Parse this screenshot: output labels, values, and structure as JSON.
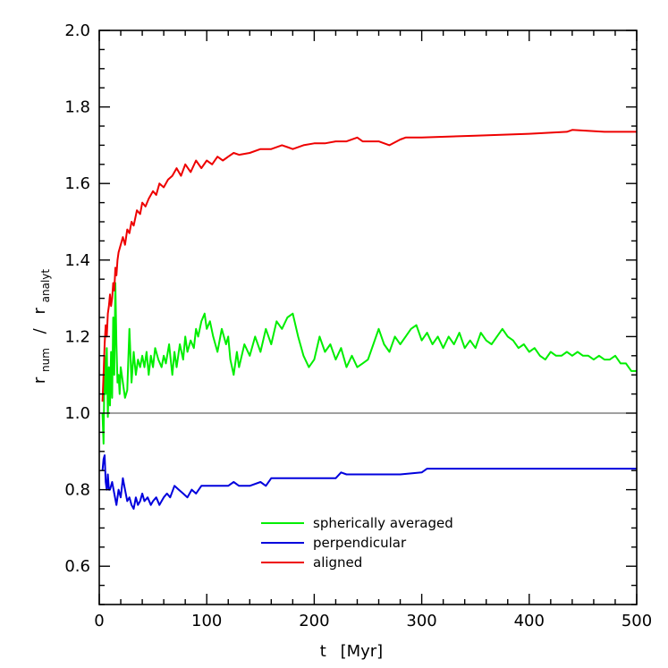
{
  "chart_data": {
    "type": "line",
    "xlabel": {
      "main": "t",
      "unit": "[Myr]"
    },
    "ylabel": {
      "num_main": "r",
      "num_sub": "num",
      "slash": "/",
      "den_main": "r",
      "den_sub": "analyt"
    },
    "xlim": [
      0,
      500
    ],
    "ylim": [
      0.5,
      2.0
    ],
    "xticks": [
      0,
      100,
      200,
      300,
      400,
      500
    ],
    "xtick_labels": [
      "0",
      "100",
      "200",
      "300",
      "400",
      "500"
    ],
    "yticks": [
      0.6,
      0.8,
      1.0,
      1.2,
      1.4,
      1.6,
      1.8,
      2.0
    ],
    "ytick_labels": [
      "0.6",
      "0.8",
      "1.0",
      "1.2",
      "1.4",
      "1.6",
      "1.8",
      "2.0"
    ],
    "reference_line": {
      "y": 1.0,
      "color": "#000000"
    },
    "legend": {
      "placement": "bottom-center"
    },
    "series": [
      {
        "name": "spherically averaged",
        "color": "#00ee00",
        "x": [
          3,
          4,
          5,
          6,
          7,
          8,
          9,
          10,
          11,
          12,
          13,
          14,
          15,
          16,
          17,
          18,
          19,
          20,
          22,
          24,
          26,
          28,
          30,
          32,
          34,
          36,
          38,
          40,
          42,
          44,
          46,
          48,
          50,
          52,
          55,
          58,
          60,
          62,
          65,
          68,
          70,
          72,
          75,
          78,
          80,
          82,
          85,
          88,
          90,
          92,
          95,
          98,
          100,
          103,
          106,
          110,
          114,
          118,
          120,
          122,
          125,
          128,
          130,
          135,
          140,
          145,
          150,
          155,
          160,
          165,
          170,
          175,
          180,
          185,
          190,
          195,
          200,
          205,
          210,
          215,
          220,
          225,
          230,
          235,
          240,
          245,
          250,
          255,
          260,
          265,
          270,
          275,
          280,
          285,
          290,
          295,
          300,
          305,
          310,
          315,
          320,
          325,
          330,
          335,
          340,
          345,
          350,
          355,
          360,
          365,
          370,
          375,
          380,
          385,
          390,
          395,
          400,
          405,
          410,
          415,
          420,
          425,
          430,
          435,
          440,
          445,
          450,
          455,
          460,
          465,
          470,
          475,
          480,
          485,
          490,
          495,
          500
        ],
        "values": [
          1.0,
          0.92,
          1.15,
          1.05,
          1.17,
          0.99,
          1.12,
          1.02,
          1.16,
          1.04,
          1.25,
          1.1,
          1.34,
          1.18,
          1.08,
          1.1,
          1.05,
          1.12,
          1.08,
          1.04,
          1.06,
          1.22,
          1.08,
          1.16,
          1.1,
          1.14,
          1.12,
          1.15,
          1.12,
          1.16,
          1.1,
          1.15,
          1.12,
          1.17,
          1.14,
          1.12,
          1.15,
          1.13,
          1.18,
          1.1,
          1.16,
          1.12,
          1.18,
          1.14,
          1.2,
          1.16,
          1.19,
          1.17,
          1.22,
          1.2,
          1.24,
          1.26,
          1.22,
          1.24,
          1.2,
          1.16,
          1.22,
          1.18,
          1.2,
          1.14,
          1.1,
          1.16,
          1.12,
          1.18,
          1.15,
          1.2,
          1.16,
          1.22,
          1.18,
          1.24,
          1.22,
          1.25,
          1.26,
          1.2,
          1.15,
          1.12,
          1.14,
          1.2,
          1.16,
          1.18,
          1.14,
          1.17,
          1.12,
          1.15,
          1.12,
          1.13,
          1.14,
          1.18,
          1.22,
          1.18,
          1.16,
          1.2,
          1.18,
          1.2,
          1.22,
          1.23,
          1.19,
          1.21,
          1.18,
          1.2,
          1.17,
          1.2,
          1.18,
          1.21,
          1.17,
          1.19,
          1.17,
          1.21,
          1.19,
          1.18,
          1.2,
          1.22,
          1.2,
          1.19,
          1.17,
          1.18,
          1.16,
          1.17,
          1.15,
          1.14,
          1.16,
          1.15,
          1.15,
          1.16,
          1.15,
          1.16,
          1.15,
          1.15,
          1.14,
          1.15,
          1.14,
          1.14,
          1.15,
          1.13,
          1.13,
          1.11,
          1.11
        ]
      },
      {
        "name": "perpendicular",
        "color": "#0000dd",
        "x": [
          3,
          4,
          5,
          6,
          7,
          8,
          9,
          10,
          12,
          14,
          16,
          18,
          20,
          22,
          24,
          26,
          28,
          30,
          32,
          34,
          36,
          38,
          40,
          42,
          45,
          48,
          50,
          53,
          56,
          58,
          60,
          63,
          66,
          70,
          74,
          78,
          82,
          86,
          90,
          95,
          100,
          110,
          120,
          125,
          130,
          140,
          150,
          155,
          160,
          170,
          180,
          200,
          220,
          225,
          230,
          240,
          260,
          280,
          300,
          305,
          320,
          350,
          400,
          450,
          500
        ],
        "values": [
          0.85,
          0.88,
          0.89,
          0.82,
          0.8,
          0.84,
          0.8,
          0.8,
          0.82,
          0.79,
          0.76,
          0.8,
          0.78,
          0.83,
          0.8,
          0.77,
          0.78,
          0.76,
          0.75,
          0.78,
          0.76,
          0.77,
          0.79,
          0.77,
          0.78,
          0.76,
          0.77,
          0.78,
          0.76,
          0.77,
          0.78,
          0.79,
          0.78,
          0.81,
          0.8,
          0.79,
          0.78,
          0.8,
          0.79,
          0.81,
          0.81,
          0.81,
          0.81,
          0.82,
          0.81,
          0.81,
          0.82,
          0.81,
          0.83,
          0.83,
          0.83,
          0.83,
          0.83,
          0.845,
          0.84,
          0.84,
          0.84,
          0.84,
          0.845,
          0.855,
          0.855,
          0.855,
          0.855,
          0.855,
          0.855
        ]
      },
      {
        "name": "aligned",
        "color": "#ee0000",
        "x": [
          3,
          4,
          5,
          6,
          7,
          8,
          9,
          10,
          11,
          12,
          13,
          14,
          15,
          16,
          17,
          18,
          20,
          22,
          24,
          26,
          28,
          30,
          32,
          35,
          38,
          40,
          43,
          46,
          50,
          53,
          56,
          60,
          64,
          68,
          72,
          76,
          80,
          85,
          90,
          95,
          100,
          105,
          110,
          115,
          120,
          125,
          130,
          140,
          150,
          160,
          170,
          175,
          180,
          190,
          200,
          210,
          220,
          230,
          240,
          245,
          250,
          260,
          270,
          280,
          285,
          290,
          300,
          350,
          400,
          435,
          440,
          470,
          500
        ],
        "values": [
          1.03,
          1.1,
          1.18,
          1.23,
          1.2,
          1.26,
          1.28,
          1.31,
          1.28,
          1.3,
          1.34,
          1.32,
          1.38,
          1.36,
          1.4,
          1.42,
          1.44,
          1.46,
          1.44,
          1.48,
          1.47,
          1.5,
          1.49,
          1.53,
          1.52,
          1.55,
          1.54,
          1.56,
          1.58,
          1.57,
          1.6,
          1.59,
          1.61,
          1.62,
          1.64,
          1.62,
          1.65,
          1.63,
          1.66,
          1.64,
          1.66,
          1.65,
          1.67,
          1.66,
          1.67,
          1.68,
          1.675,
          1.68,
          1.69,
          1.69,
          1.7,
          1.695,
          1.69,
          1.7,
          1.705,
          1.705,
          1.71,
          1.71,
          1.72,
          1.71,
          1.71,
          1.71,
          1.7,
          1.715,
          1.72,
          1.72,
          1.72,
          1.725,
          1.73,
          1.735,
          1.74,
          1.735,
          1.735
        ]
      }
    ]
  }
}
